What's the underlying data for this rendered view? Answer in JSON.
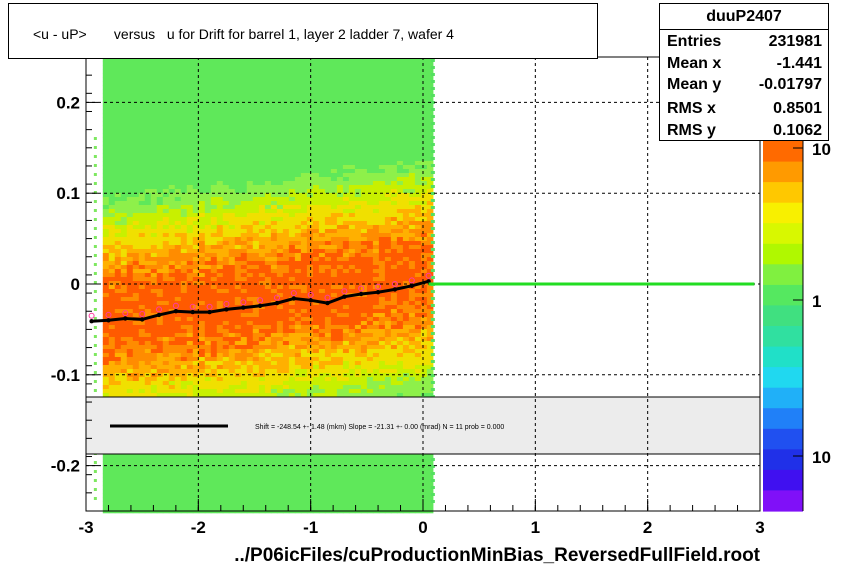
{
  "chart_data": {
    "type": "heatmap",
    "title": "<u - uP>       versus   u for Drift for barrel 1, layer 2 ladder 7, wafer 4",
    "xlabel": "../P06icFiles/cuProductionMinBias_ReversedFullField.root",
    "ylabel": "",
    "xlim": [
      -3,
      3
    ],
    "ylim": [
      -0.25,
      0.25
    ],
    "x_ticks": [
      "-3",
      "-2",
      "-1",
      "0",
      "1",
      "2",
      "3"
    ],
    "y_ticks": [
      "-0.2",
      "-0.1",
      "0",
      "0.1",
      "0.2"
    ],
    "grid": true,
    "colorbar_labels": [
      "10",
      "1",
      "10"
    ],
    "stats": {
      "name": "duuP2407",
      "rows": [
        {
          "label": "Entries",
          "value": "231981"
        },
        {
          "label": "Mean x",
          "value": "-1.441"
        },
        {
          "label": "Mean y",
          "value": "-0.01797"
        },
        {
          "label": "RMS x",
          "value": "0.8501"
        },
        {
          "label": "RMS y",
          "value": "0.1062"
        }
      ]
    },
    "fit_legend": "Shift =   -248.54 +- 1.48 (mkm) Slope =   -21.31 +- 0.00 (mrad)  N = 11 prob = 0.000",
    "profile_series": {
      "name": "profile",
      "x": [
        -2.95,
        -2.8,
        -2.65,
        -2.5,
        -2.35,
        -2.2,
        -2.05,
        -1.9,
        -1.75,
        -1.6,
        -1.45,
        -1.3,
        -1.15,
        -1.0,
        -0.85,
        -0.7,
        -0.55,
        -0.4,
        -0.25,
        -0.1,
        0.05
      ],
      "y": [
        -0.041,
        -0.04,
        -0.038,
        -0.039,
        -0.034,
        -0.03,
        -0.031,
        -0.031,
        -0.028,
        -0.026,
        -0.024,
        -0.021,
        -0.016,
        -0.018,
        -0.021,
        -0.014,
        -0.011,
        -0.009,
        -0.006,
        -0.002,
        0.003
      ]
    },
    "flat_line": {
      "x": [
        0.05,
        2.95
      ],
      "y": 0.0
    }
  }
}
